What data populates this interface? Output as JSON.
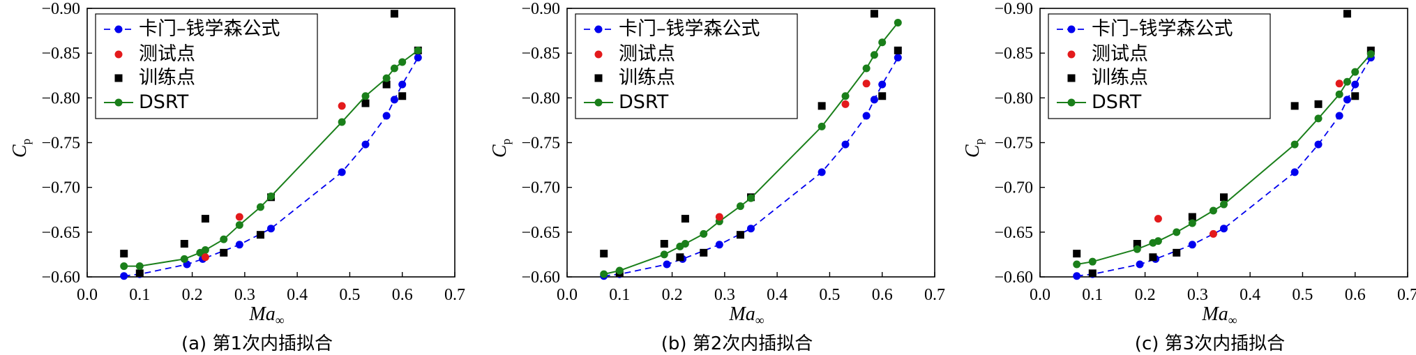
{
  "common": {
    "xlabel_main": "Ma",
    "xlabel_sub": "∞",
    "ylabel_main": "C",
    "ylabel_sub": "p",
    "xticks": [
      "0.0",
      "0.1",
      "0.2",
      "0.3",
      "0.4",
      "0.5",
      "0.6",
      "0.7"
    ],
    "yticks": [
      "−0.60",
      "−0.65",
      "−0.70",
      "−0.75",
      "−0.80",
      "−0.85",
      "−0.90"
    ],
    "legend": [
      "卡门–钱学森公式",
      "测试点",
      "训练点",
      "DSRT"
    ],
    "colors": {
      "formula": "#0000ee",
      "test": "#e31a1c",
      "train": "#000000",
      "dsrt": "#1a7f1a"
    }
  },
  "captions": [
    "(a) 第1次内插拟合",
    "(b) 第2次内插拟合",
    "(c) 第3次内插拟合"
  ],
  "chart_data": [
    {
      "type": "scatter",
      "title": "",
      "xlim": [
        0.0,
        0.7
      ],
      "ylim": [
        -0.6,
        -0.9
      ],
      "formula": [
        [
          0.07,
          -0.601
        ],
        [
          0.1,
          -0.603
        ],
        [
          0.19,
          -0.614
        ],
        [
          0.22,
          -0.62
        ],
        [
          0.29,
          -0.636
        ],
        [
          0.35,
          -0.654
        ],
        [
          0.485,
          -0.717
        ],
        [
          0.53,
          -0.748
        ],
        [
          0.57,
          -0.78
        ],
        [
          0.585,
          -0.798
        ],
        [
          0.6,
          -0.815
        ],
        [
          0.63,
          -0.845
        ]
      ],
      "test": [
        [
          0.225,
          -0.622
        ],
        [
          0.29,
          -0.667
        ],
        [
          0.485,
          -0.791
        ]
      ],
      "train": [
        [
          0.07,
          -0.626
        ],
        [
          0.1,
          -0.604
        ],
        [
          0.185,
          -0.637
        ],
        [
          0.225,
          -0.665
        ],
        [
          0.26,
          -0.627
        ],
        [
          0.33,
          -0.647
        ],
        [
          0.35,
          -0.689
        ],
        [
          0.53,
          -0.794
        ],
        [
          0.57,
          -0.815
        ],
        [
          0.585,
          -0.894
        ],
        [
          0.6,
          -0.802
        ],
        [
          0.63,
          -0.853
        ]
      ],
      "dsrt": [
        [
          0.07,
          -0.612
        ],
        [
          0.1,
          -0.612
        ],
        [
          0.185,
          -0.62
        ],
        [
          0.215,
          -0.627
        ],
        [
          0.225,
          -0.63
        ],
        [
          0.26,
          -0.642
        ],
        [
          0.29,
          -0.658
        ],
        [
          0.33,
          -0.678
        ],
        [
          0.35,
          -0.69
        ],
        [
          0.485,
          -0.773
        ],
        [
          0.53,
          -0.802
        ],
        [
          0.57,
          -0.822
        ],
        [
          0.585,
          -0.833
        ],
        [
          0.6,
          -0.84
        ],
        [
          0.63,
          -0.853
        ]
      ]
    },
    {
      "type": "scatter",
      "title": "",
      "xlim": [
        0.0,
        0.7
      ],
      "ylim": [
        -0.6,
        -0.9
      ],
      "formula": [
        [
          0.07,
          -0.601
        ],
        [
          0.1,
          -0.603
        ],
        [
          0.19,
          -0.614
        ],
        [
          0.22,
          -0.62
        ],
        [
          0.29,
          -0.636
        ],
        [
          0.35,
          -0.654
        ],
        [
          0.485,
          -0.717
        ],
        [
          0.53,
          -0.748
        ],
        [
          0.57,
          -0.78
        ],
        [
          0.585,
          -0.798
        ],
        [
          0.6,
          -0.815
        ],
        [
          0.63,
          -0.845
        ]
      ],
      "test": [
        [
          0.29,
          -0.667
        ],
        [
          0.53,
          -0.793
        ],
        [
          0.57,
          -0.816
        ]
      ],
      "train": [
        [
          0.07,
          -0.626
        ],
        [
          0.1,
          -0.604
        ],
        [
          0.185,
          -0.637
        ],
        [
          0.215,
          -0.622
        ],
        [
          0.225,
          -0.665
        ],
        [
          0.26,
          -0.627
        ],
        [
          0.33,
          -0.647
        ],
        [
          0.35,
          -0.689
        ],
        [
          0.485,
          -0.791
        ],
        [
          0.585,
          -0.894
        ],
        [
          0.6,
          -0.802
        ],
        [
          0.63,
          -0.853
        ]
      ],
      "dsrt": [
        [
          0.07,
          -0.603
        ],
        [
          0.1,
          -0.607
        ],
        [
          0.185,
          -0.625
        ],
        [
          0.215,
          -0.634
        ],
        [
          0.225,
          -0.637
        ],
        [
          0.26,
          -0.648
        ],
        [
          0.29,
          -0.662
        ],
        [
          0.33,
          -0.679
        ],
        [
          0.35,
          -0.688
        ],
        [
          0.485,
          -0.768
        ],
        [
          0.53,
          -0.802
        ],
        [
          0.57,
          -0.833
        ],
        [
          0.585,
          -0.848
        ],
        [
          0.6,
          -0.862
        ],
        [
          0.63,
          -0.884
        ]
      ]
    },
    {
      "type": "scatter",
      "title": "",
      "xlim": [
        0.0,
        0.7
      ],
      "ylim": [
        -0.6,
        -0.9
      ],
      "formula": [
        [
          0.07,
          -0.601
        ],
        [
          0.1,
          -0.603
        ],
        [
          0.19,
          -0.614
        ],
        [
          0.22,
          -0.62
        ],
        [
          0.29,
          -0.636
        ],
        [
          0.35,
          -0.654
        ],
        [
          0.485,
          -0.717
        ],
        [
          0.53,
          -0.748
        ],
        [
          0.57,
          -0.78
        ],
        [
          0.585,
          -0.798
        ],
        [
          0.6,
          -0.815
        ],
        [
          0.63,
          -0.845
        ]
      ],
      "test": [
        [
          0.225,
          -0.665
        ],
        [
          0.33,
          -0.648
        ],
        [
          0.57,
          -0.816
        ]
      ],
      "train": [
        [
          0.07,
          -0.626
        ],
        [
          0.1,
          -0.604
        ],
        [
          0.185,
          -0.637
        ],
        [
          0.215,
          -0.622
        ],
        [
          0.26,
          -0.627
        ],
        [
          0.29,
          -0.667
        ],
        [
          0.35,
          -0.689
        ],
        [
          0.485,
          -0.791
        ],
        [
          0.53,
          -0.793
        ],
        [
          0.585,
          -0.894
        ],
        [
          0.6,
          -0.802
        ],
        [
          0.63,
          -0.853
        ]
      ],
      "dsrt": [
        [
          0.07,
          -0.614
        ],
        [
          0.1,
          -0.617
        ],
        [
          0.185,
          -0.631
        ],
        [
          0.215,
          -0.638
        ],
        [
          0.225,
          -0.64
        ],
        [
          0.26,
          -0.65
        ],
        [
          0.29,
          -0.66
        ],
        [
          0.33,
          -0.674
        ],
        [
          0.35,
          -0.681
        ],
        [
          0.485,
          -0.748
        ],
        [
          0.53,
          -0.777
        ],
        [
          0.57,
          -0.804
        ],
        [
          0.585,
          -0.818
        ],
        [
          0.6,
          -0.829
        ],
        [
          0.63,
          -0.849
        ]
      ]
    }
  ]
}
